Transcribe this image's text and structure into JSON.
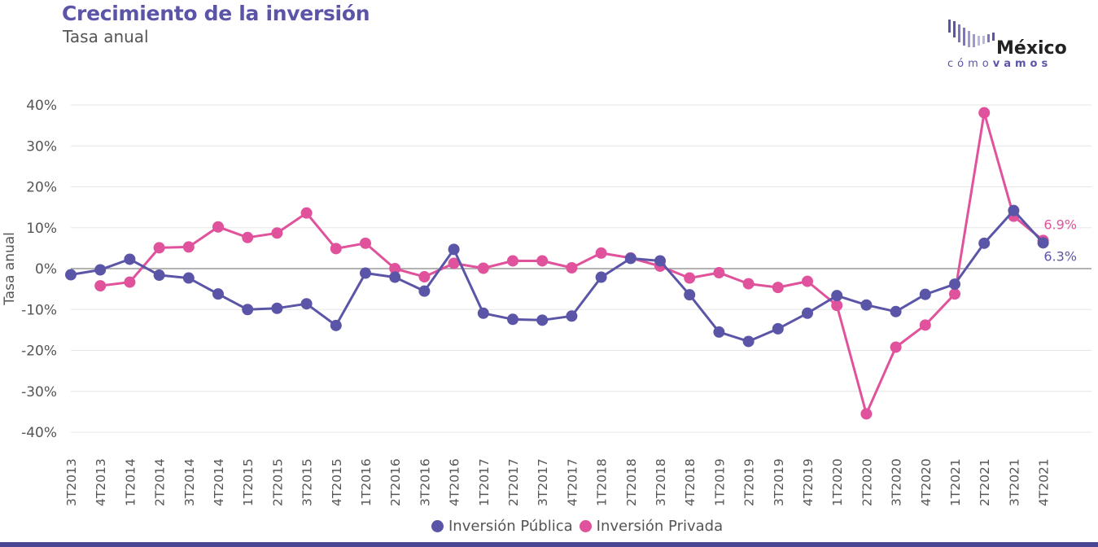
{
  "header": {
    "title": "Crecimiento de la inversión",
    "subtitle": "Tasa anual"
  },
  "logo": {
    "word": "México",
    "tagline_light": "cómo",
    "tagline_bold": "vamos",
    "color": "#5b55a8"
  },
  "chart_data": {
    "type": "line",
    "ylabel": "Tasa anual",
    "xlabel": "",
    "ylim": [
      -40,
      40
    ],
    "ytick_values": [
      40,
      30,
      20,
      10,
      0,
      -10,
      -20,
      -30,
      -40
    ],
    "ytick_labels": [
      "40%",
      "30%",
      "20%",
      "10%",
      "0%",
      "-10%",
      "-20%",
      "-30%",
      "-40%"
    ],
    "grid": true,
    "legend_position": "bottom",
    "categories": [
      "3T2013",
      "4T2013",
      "1T2014",
      "2T2014",
      "3T2014",
      "4T2014",
      "1T2015",
      "2T2015",
      "3T2015",
      "4T2015",
      "1T2016",
      "2T2016",
      "3T2016",
      "4T2016",
      "1T2017",
      "2T2017",
      "3T2017",
      "4T2017",
      "1T2018",
      "2T2018",
      "3T2018",
      "4T2018",
      "1T2019",
      "2T2019",
      "3T2019",
      "4T2019",
      "1T2020",
      "2T2020",
      "3T2020",
      "4T2020",
      "1T2021",
      "2T2021",
      "3T2021",
      "4T2021"
    ],
    "series": [
      {
        "name": "Inversión Pública",
        "color": "#5b55a8",
        "values": [
          -1.5,
          -0.3,
          2.3,
          -1.6,
          -2.3,
          -6.2,
          -10.0,
          -9.7,
          -8.6,
          -13.9,
          -1.1,
          -2.1,
          -5.5,
          4.7,
          -10.9,
          -12.4,
          -12.6,
          -11.6,
          -2.1,
          2.5,
          1.9,
          -6.4,
          -15.5,
          -17.8,
          -14.7,
          -10.9,
          -6.6,
          -8.9,
          -10.5,
          -6.3,
          -3.8,
          6.2,
          14.2,
          6.3
        ],
        "end_label": "6.3%"
      },
      {
        "name": "Inversión Privada",
        "color": "#e0529c",
        "values": [
          null,
          -4.2,
          -3.3,
          5.1,
          5.3,
          10.2,
          7.6,
          8.7,
          13.6,
          4.9,
          6.2,
          0.0,
          -2.0,
          1.3,
          0.1,
          1.9,
          1.9,
          0.2,
          3.8,
          2.6,
          0.6,
          -2.3,
          -1.0,
          -3.7,
          -4.6,
          -3.1,
          -9.0,
          -35.5,
          -19.2,
          -13.8,
          -6.2,
          38.1,
          12.8,
          6.9
        ],
        "end_label": "6.9%"
      }
    ]
  }
}
